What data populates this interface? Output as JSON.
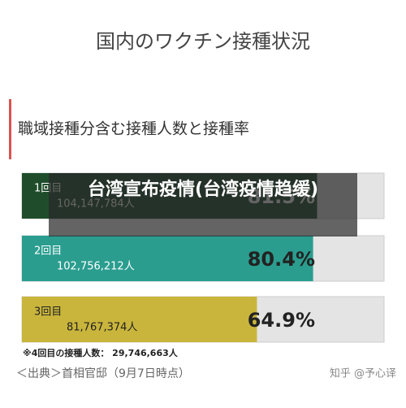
{
  "chart_data": {
    "type": "bar",
    "orientation": "horizontal",
    "title": "国内のワクチン接種状況",
    "subtitle": "職域接種分含む接種人数と接種率",
    "categories": [
      "1回目",
      "2回目",
      "3回目"
    ],
    "values": [
      81.5,
      80.4,
      64.9
    ],
    "value_labels": [
      "81.5%",
      "80.4%",
      "64.9%"
    ],
    "count_labels": [
      "104,147,784人",
      "102,756,212人",
      "81,767,374人"
    ],
    "colors": [
      "#1f4d2b",
      "#2a9d8f",
      "#c9b53c"
    ],
    "xlim": [
      0,
      100
    ],
    "note": "※4回目の接種人数： 29,746,663人",
    "source": "＜出典＞首相官邸（9月7日時点）"
  },
  "overlay": {
    "text": "台湾宣布疫情(台湾疫情趋缓)"
  },
  "watermark": "知乎 @予心译"
}
